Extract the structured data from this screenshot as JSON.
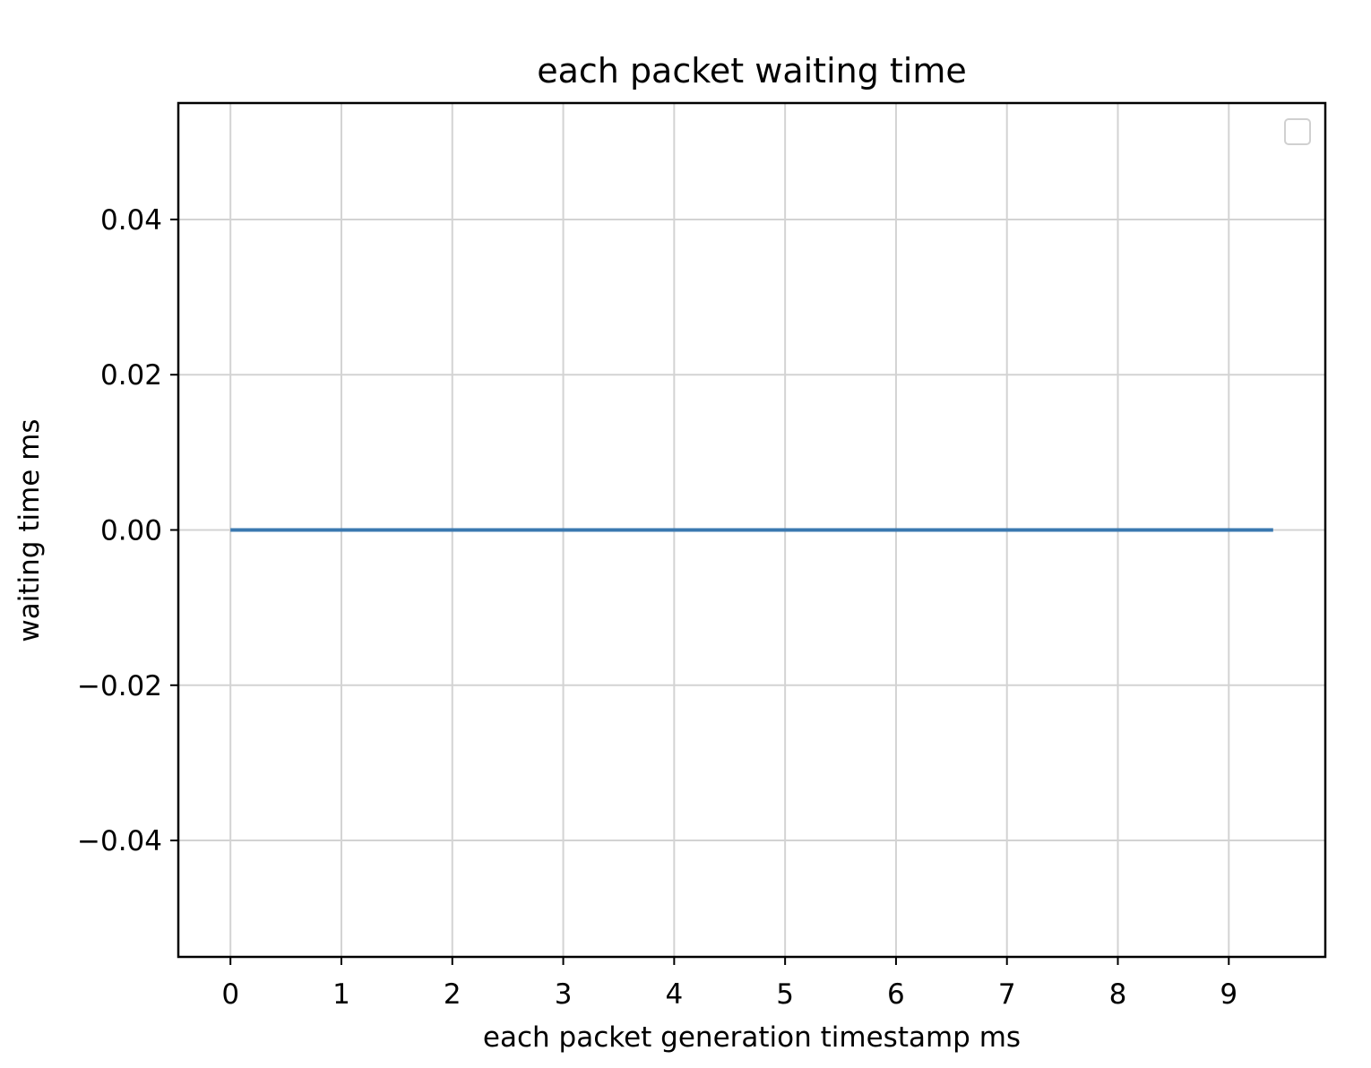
{
  "chart_data": {
    "type": "line",
    "title": "each packet waiting time",
    "xlabel": "each packet generation timestamp ms",
    "ylabel": "waiting time ms",
    "xlim": [
      -0.47,
      9.87
    ],
    "ylim": [
      -0.055,
      0.055
    ],
    "x_ticks": [
      0,
      1,
      2,
      3,
      4,
      5,
      6,
      7,
      8,
      9
    ],
    "x_tick_labels": [
      "0",
      "1",
      "2",
      "3",
      "4",
      "5",
      "6",
      "7",
      "8",
      "9"
    ],
    "y_ticks": [
      0.04,
      0.02,
      0.0,
      -0.02,
      -0.04
    ],
    "y_tick_labels": [
      "0.04",
      "0.02",
      "0.00",
      "−0.02",
      "−0.04"
    ],
    "grid": true,
    "legend": {
      "placement": "top-right",
      "entries": []
    },
    "series": [
      {
        "color": "#3a78b0",
        "x": [
          0,
          1,
          2,
          3,
          4,
          5,
          6,
          7,
          8,
          9,
          9.4
        ],
        "y": [
          0,
          0,
          0,
          0,
          0,
          0,
          0,
          0,
          0,
          0,
          0
        ]
      }
    ]
  }
}
